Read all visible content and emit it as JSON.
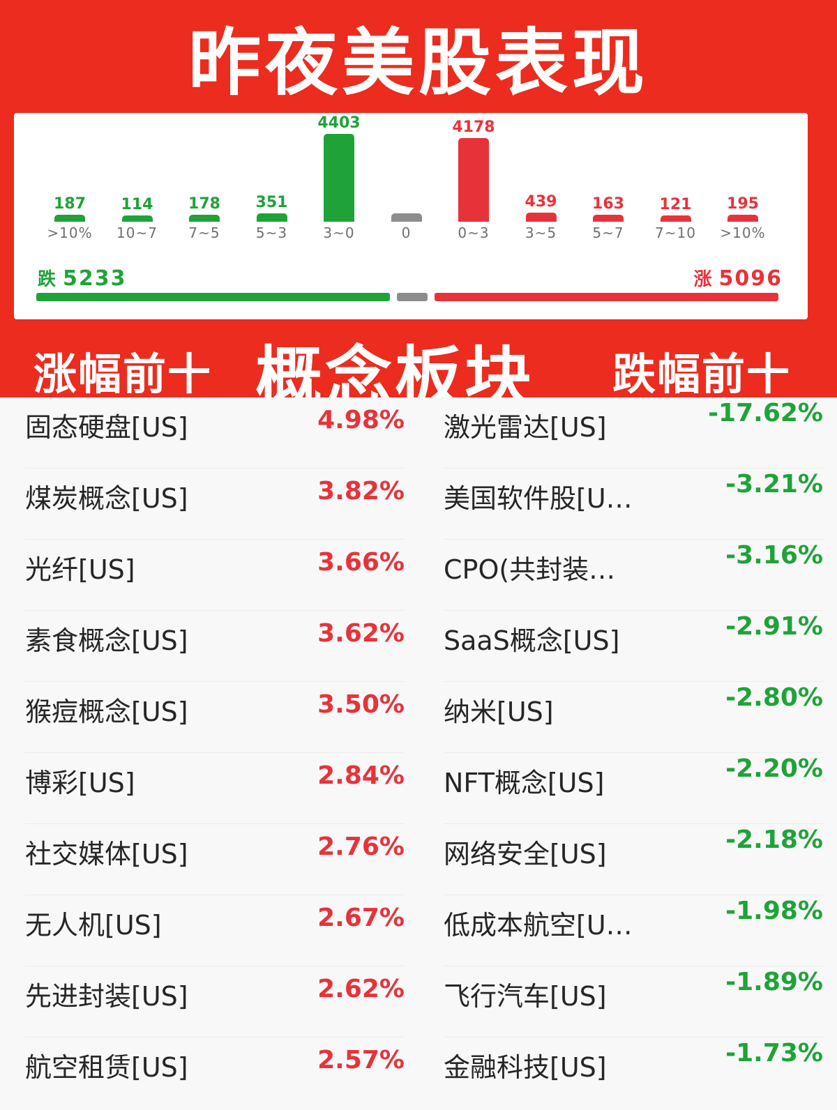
{
  "title": "昨夜美股表现",
  "distribution": {
    "bins": [
      {
        "range": ">10%",
        "count": 187,
        "side": "fall"
      },
      {
        "range": "10~7",
        "count": 114,
        "side": "fall"
      },
      {
        "range": "7~5",
        "count": 178,
        "side": "fall"
      },
      {
        "range": "5~3",
        "count": 351,
        "side": "fall"
      },
      {
        "range": "3~0",
        "count": 4403,
        "side": "fall"
      },
      {
        "range": "0",
        "count": "",
        "side": "flat"
      },
      {
        "range": "0~3",
        "count": 4178,
        "side": "rise"
      },
      {
        "range": "3~5",
        "count": 439,
        "side": "rise"
      },
      {
        "range": "5~7",
        "count": 163,
        "side": "rise"
      },
      {
        "range": "7~10",
        "count": 121,
        "side": "rise"
      },
      {
        "range": ">10%",
        "count": 195,
        "side": "rise"
      }
    ],
    "fall": {
      "label": "跌",
      "total": "5233"
    },
    "rise": {
      "label": "涨",
      "total": "5096"
    },
    "colors": {
      "fall": "#1fa339",
      "rise": "#e8323a",
      "flat": "#8d8d8d"
    }
  },
  "concept": {
    "title": "概念板块",
    "gainers_title": "涨幅前十",
    "losers_title": "跌幅前十",
    "gainers": [
      {
        "name": "固态硬盘[US]",
        "change": "4.98%"
      },
      {
        "name": "煤炭概念[US]",
        "change": "3.82%"
      },
      {
        "name": "光纤[US]",
        "change": "3.66%"
      },
      {
        "name": "素食概念[US]",
        "change": "3.62%"
      },
      {
        "name": "猴痘概念[US]",
        "change": "3.50%"
      },
      {
        "name": "博彩[US]",
        "change": "2.84%"
      },
      {
        "name": "社交媒体[US]",
        "change": "2.76%"
      },
      {
        "name": "无人机[US]",
        "change": "2.67%"
      },
      {
        "name": "先进封装[US]",
        "change": "2.62%"
      },
      {
        "name": "航空租赁[US]",
        "change": "2.57%"
      }
    ],
    "losers": [
      {
        "name": "激光雷达[US]",
        "change": "-17.62%"
      },
      {
        "name": "美国软件股[U…",
        "change": "-3.21%"
      },
      {
        "name": "CPO(共封装…",
        "change": "-3.16%"
      },
      {
        "name": "SaaS概念[US]",
        "change": "-2.91%"
      },
      {
        "name": "纳米[US]",
        "change": "-2.80%"
      },
      {
        "name": "NFT概念[US]",
        "change": "-2.20%"
      },
      {
        "name": "网络安全[US]",
        "change": "-2.18%"
      },
      {
        "name": "低成本航空[U…",
        "change": "-1.98%"
      },
      {
        "name": "飞行汽车[US]",
        "change": "-1.89%"
      },
      {
        "name": "金融科技[US]",
        "change": "-1.73%"
      }
    ]
  }
}
